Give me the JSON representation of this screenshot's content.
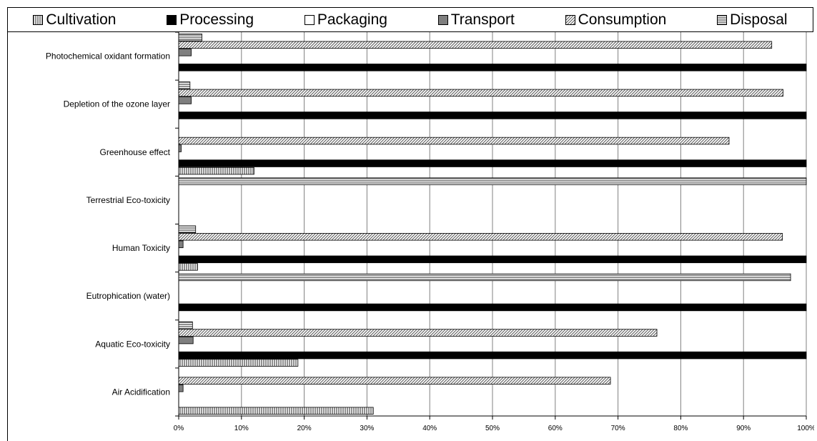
{
  "chart_data": {
    "type": "bar",
    "orientation": "horizontal",
    "stacked": false,
    "categories": [
      "Photochemical oxidant formation",
      "Depletion of the ozone layer",
      "Greenhouse effect",
      "Terrestrial Eco-toxicity",
      "Human Toxicity",
      "Eutrophication (water)",
      "Aquatic Eco-toxicity",
      "Air Acidification"
    ],
    "series": [
      {
        "name": "Cultivation",
        "pattern": "vertical-lines",
        "values": [
          0,
          0,
          12,
          0,
          3,
          0,
          19,
          31
        ]
      },
      {
        "name": "Processing",
        "pattern": "solid",
        "values": [
          100,
          100,
          100,
          0,
          100,
          100,
          100,
          0
        ]
      },
      {
        "name": "Packaging",
        "pattern": "empty",
        "values": [
          0,
          0,
          0,
          0,
          0,
          0,
          0,
          0
        ]
      },
      {
        "name": "Transport",
        "pattern": "solid-gray",
        "values": [
          2,
          2,
          0.4,
          0,
          0.7,
          0,
          2.3,
          0.7
        ]
      },
      {
        "name": "Consumption",
        "pattern": "diagonal-lines",
        "values": [
          94.5,
          96.3,
          87.7,
          0,
          96.2,
          0,
          76.2,
          68.8
        ]
      },
      {
        "name": "Disposal",
        "pattern": "horizontal-lines",
        "values": [
          3.7,
          1.8,
          0,
          100,
          2.7,
          97.5,
          2.2,
          0
        ]
      }
    ],
    "xlim": [
      0,
      100
    ],
    "xticks": [
      "0%",
      "10%",
      "20%",
      "30%",
      "40%",
      "50%",
      "60%",
      "70%",
      "80%",
      "90%",
      "100%"
    ],
    "grid": "vertical",
    "legend_position": "top"
  }
}
